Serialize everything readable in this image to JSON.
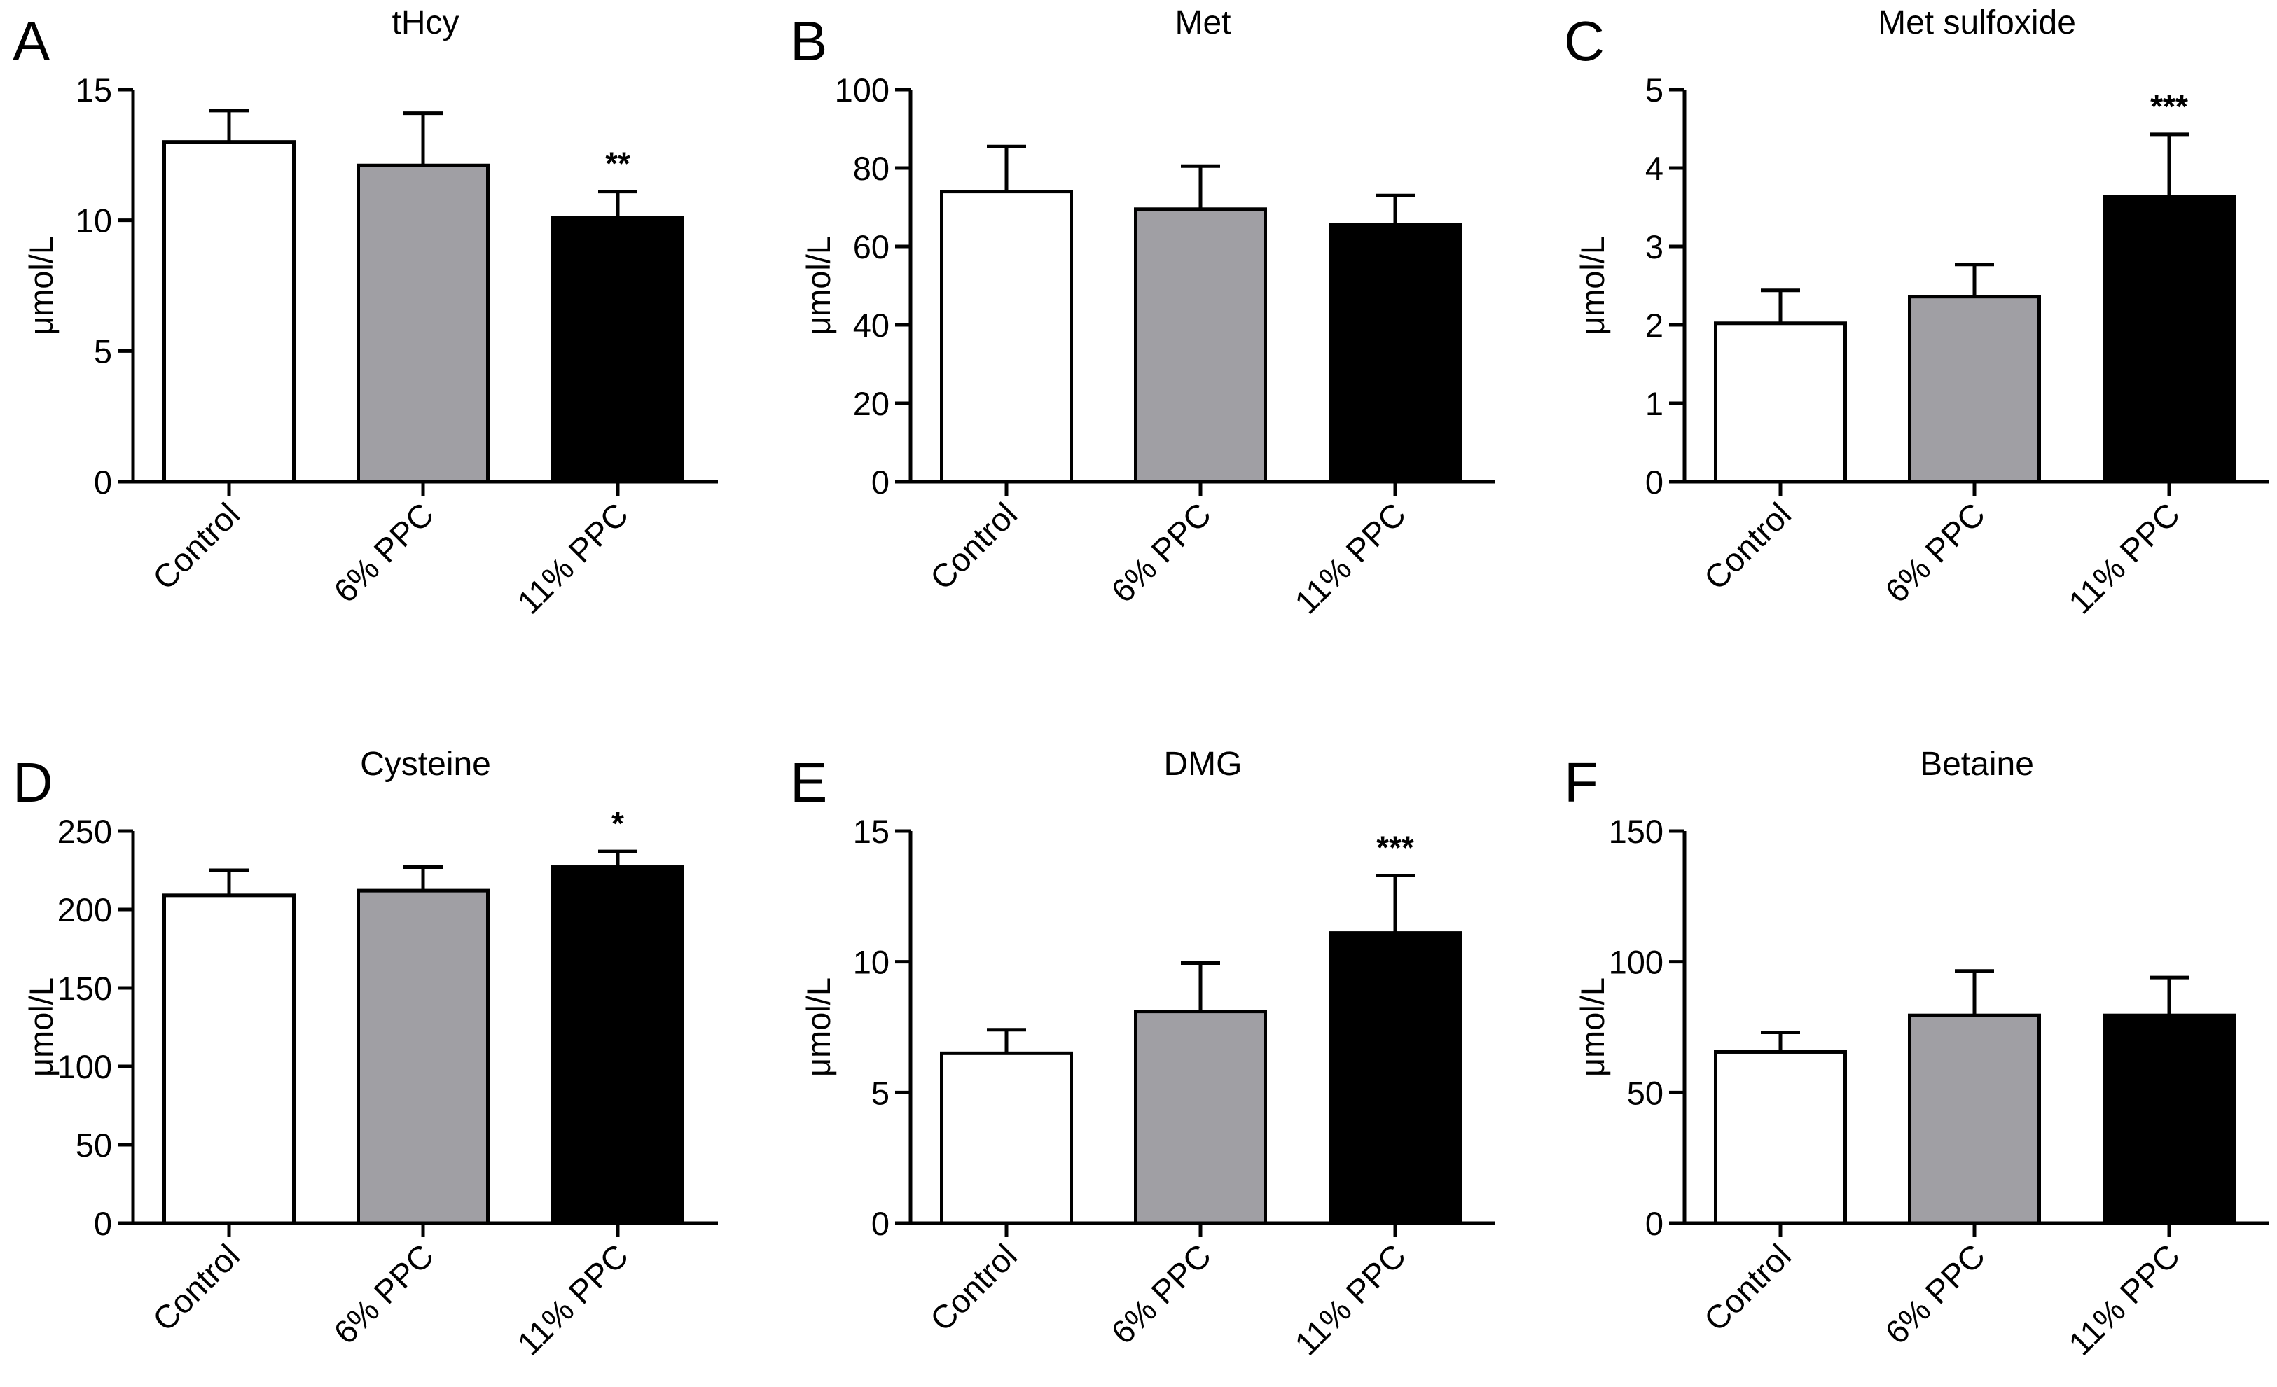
{
  "chart_data": [
    {
      "panel": "A",
      "type": "bar",
      "title": "tHcy",
      "ylabel": "μmol/L",
      "categories": [
        "Control",
        "6% PPC",
        "11% PPC"
      ],
      "values": [
        13.0,
        12.1,
        10.1
      ],
      "errors": [
        1.2,
        2.0,
        1.0
      ],
      "significance": [
        "",
        "",
        "**"
      ],
      "ylim": [
        0,
        15
      ],
      "yticks": [
        0,
        5,
        10,
        15
      ],
      "colors": [
        "#ffffff",
        "#a09fa4",
        "#000000"
      ]
    },
    {
      "panel": "B",
      "type": "bar",
      "title": "Met",
      "ylabel": "μmol/L",
      "categories": [
        "Control",
        "6% PPC",
        "11% PPC"
      ],
      "values": [
        74,
        69.5,
        65.5
      ],
      "errors": [
        11.5,
        11,
        7.5
      ],
      "significance": [
        "",
        "",
        ""
      ],
      "ylim": [
        0,
        100
      ],
      "yticks": [
        0,
        20,
        40,
        60,
        80,
        100
      ],
      "colors": [
        "#ffffff",
        "#a09fa4",
        "#000000"
      ]
    },
    {
      "panel": "C",
      "type": "bar",
      "title": "Met sulfoxide",
      "ylabel": "μmol/L",
      "categories": [
        "Control",
        "6% PPC",
        "11% PPC"
      ],
      "values": [
        2.02,
        2.36,
        3.63
      ],
      "errors": [
        0.42,
        0.41,
        0.8
      ],
      "significance": [
        "",
        "",
        "***"
      ],
      "ylim": [
        0,
        5
      ],
      "yticks": [
        0,
        1,
        2,
        3,
        4,
        5
      ],
      "colors": [
        "#ffffff",
        "#a09fa4",
        "#000000"
      ]
    },
    {
      "panel": "D",
      "type": "bar",
      "title": "Cysteine",
      "ylabel": "μmol/L",
      "categories": [
        "Control",
        "6% PPC",
        "11% PPC"
      ],
      "values": [
        209,
        212,
        227
      ],
      "errors": [
        16,
        15,
        10
      ],
      "significance": [
        "",
        "",
        "*"
      ],
      "ylim": [
        0,
        250
      ],
      "yticks": [
        0,
        50,
        100,
        150,
        200,
        250
      ],
      "colors": [
        "#ffffff",
        "#a09fa4",
        "#000000"
      ]
    },
    {
      "panel": "E",
      "type": "bar",
      "title": "DMG",
      "ylabel": "μmol/L",
      "categories": [
        "Control",
        "6% PPC",
        "11% PPC"
      ],
      "values": [
        6.5,
        8.1,
        11.1
      ],
      "errors": [
        0.9,
        1.85,
        2.2
      ],
      "significance": [
        "",
        "",
        "***"
      ],
      "ylim": [
        0,
        15
      ],
      "yticks": [
        0,
        5,
        10,
        15
      ],
      "colors": [
        "#ffffff",
        "#a09fa4",
        "#000000"
      ]
    },
    {
      "panel": "F",
      "type": "bar",
      "title": "Betaine",
      "ylabel": "μmol/L",
      "categories": [
        "Control",
        "6% PPC",
        "11% PPC"
      ],
      "values": [
        65.5,
        79.5,
        79.5
      ],
      "errors": [
        7.5,
        17,
        14.5
      ],
      "significance": [
        "",
        "",
        ""
      ],
      "ylim": [
        0,
        150
      ],
      "yticks": [
        0,
        50,
        100,
        150
      ],
      "colors": [
        "#ffffff",
        "#a09fa4",
        "#000000"
      ]
    }
  ]
}
